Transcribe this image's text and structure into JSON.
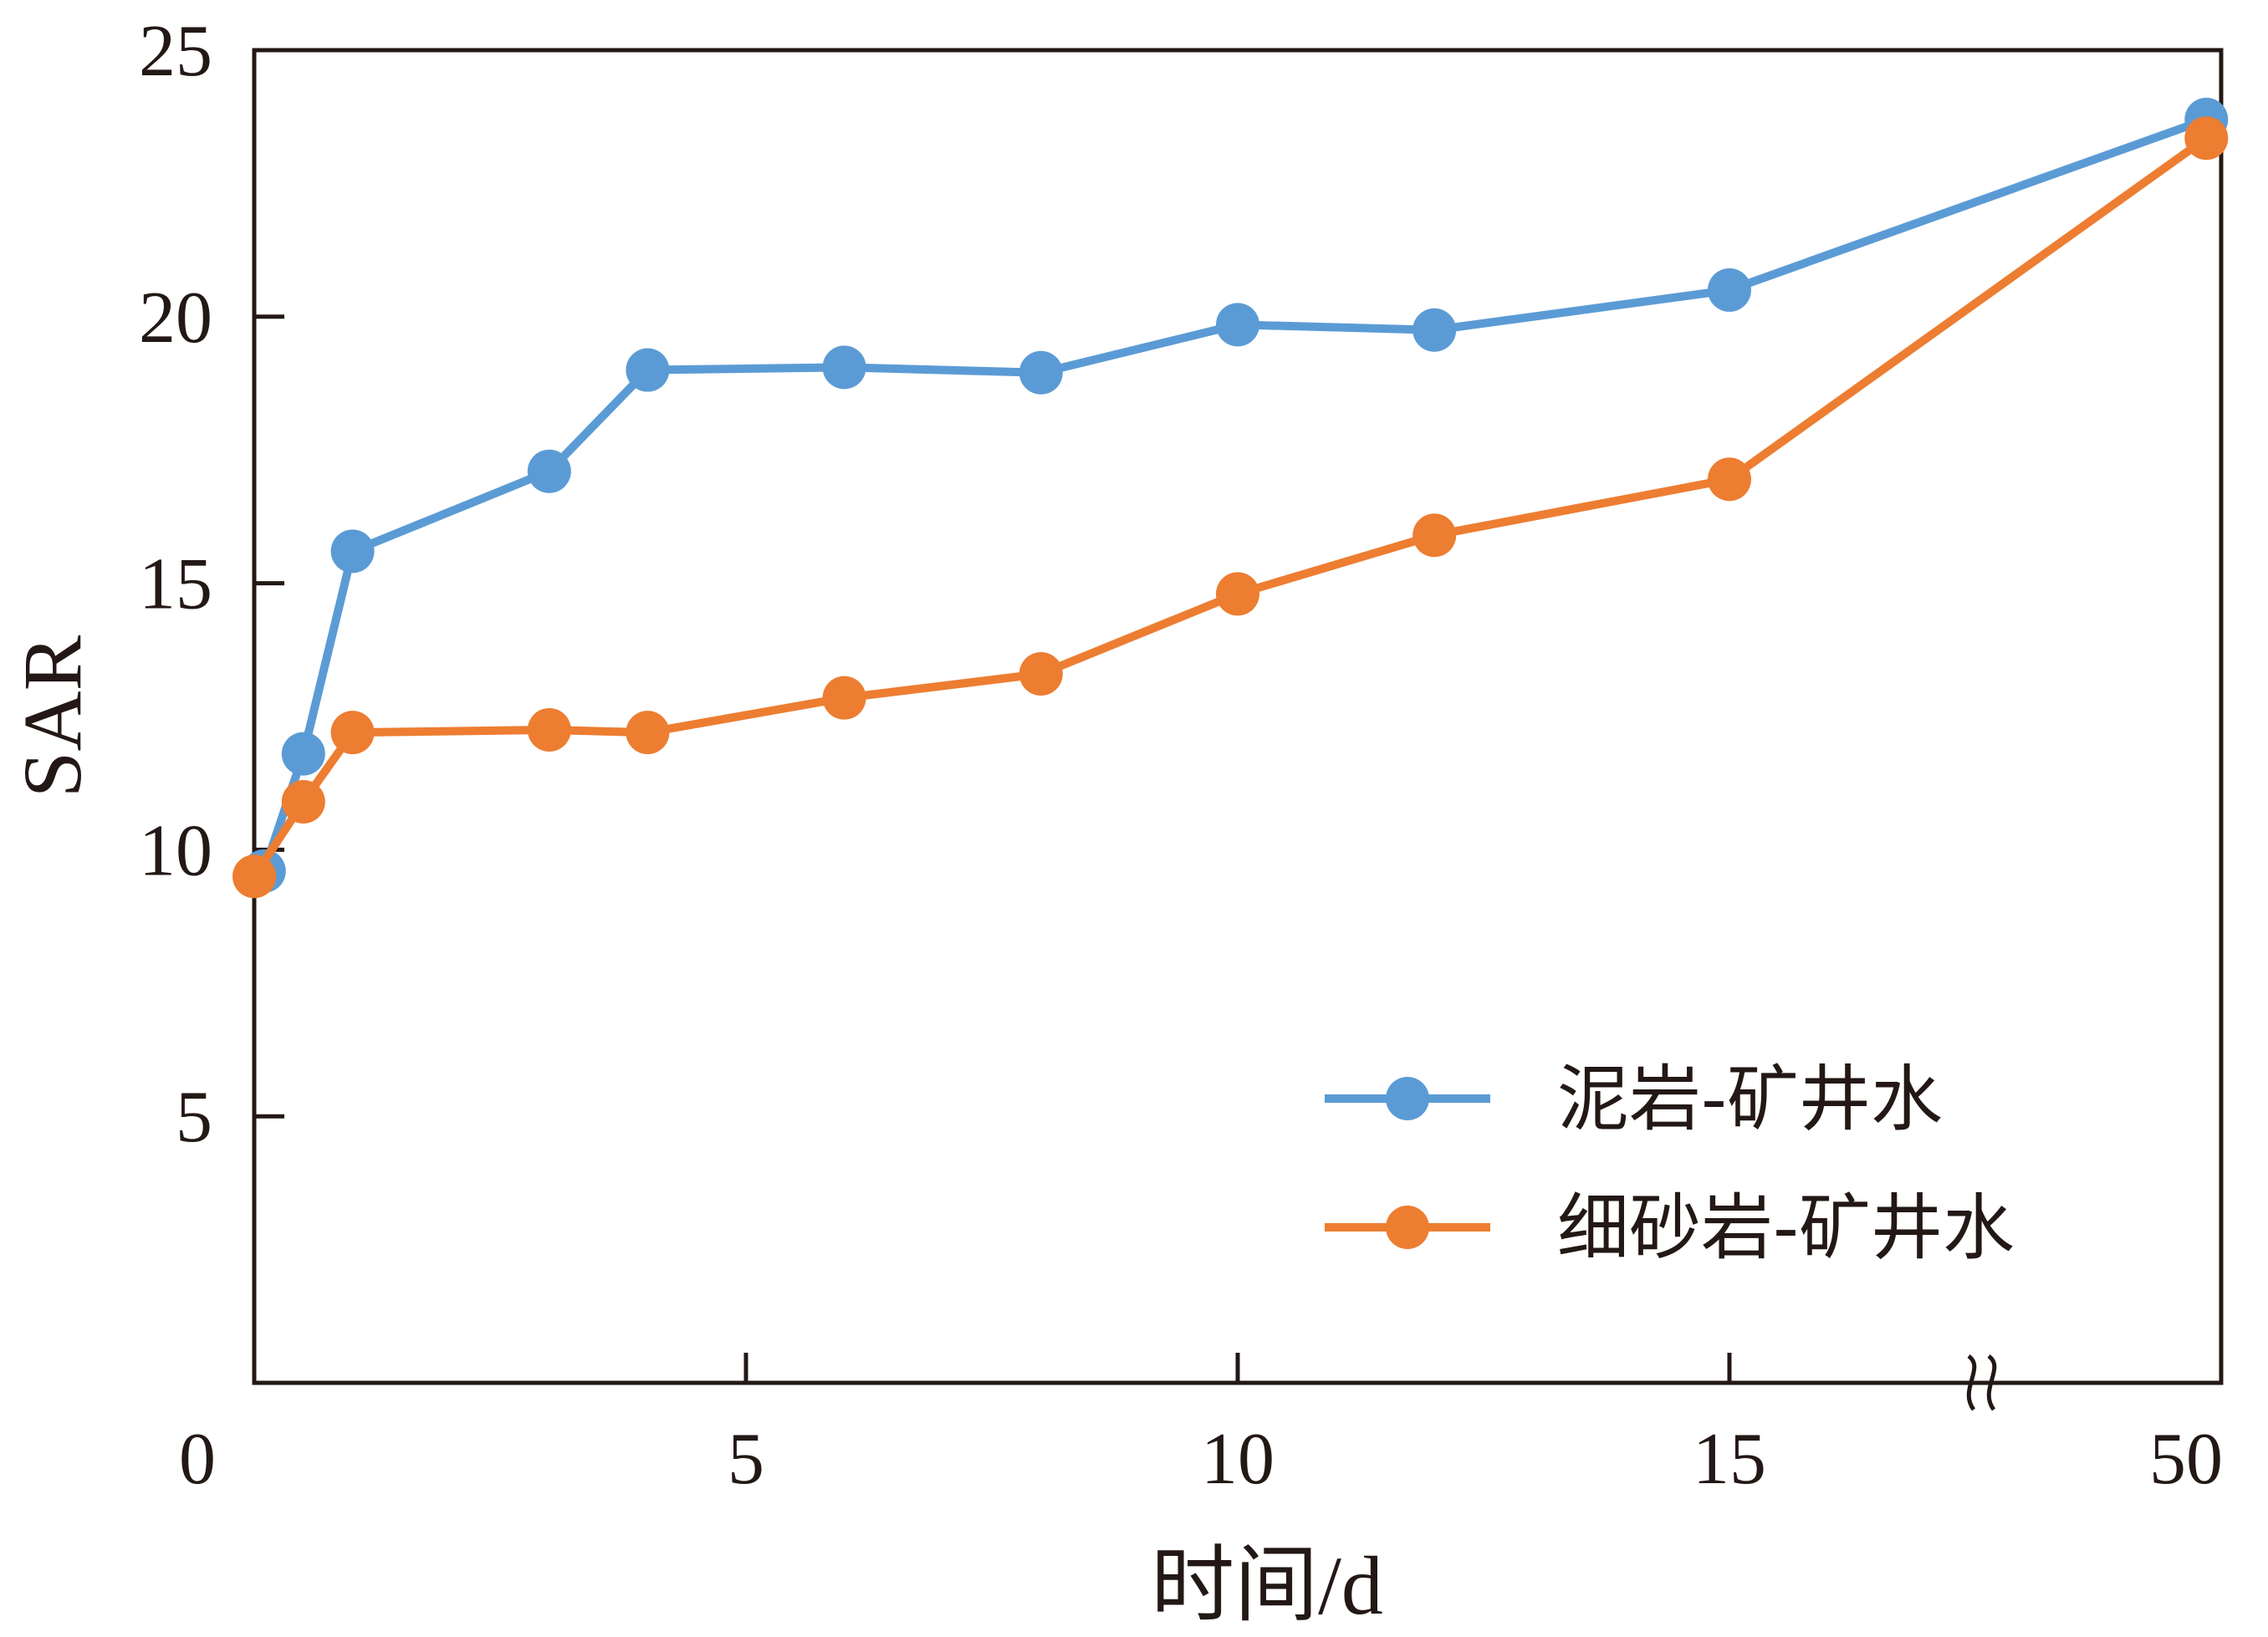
{
  "chart_data": {
    "type": "line",
    "xlabel": "时间/d",
    "ylabel": "SAR",
    "ylim": [
      0,
      25
    ],
    "yticks": [
      5,
      10,
      15,
      20,
      25
    ],
    "x_axis": {
      "segments": [
        {
          "from": 0,
          "to": 17.5,
          "scale": "linear"
        },
        {
          "from": 17.5,
          "to": 50,
          "scale": "broken"
        }
      ],
      "tick_labels": [
        "0",
        "5",
        "10",
        "15",
        "50"
      ],
      "break_marker": "≈"
    },
    "series": [
      {
        "name": "泥岩-矿井水",
        "color": "#5b9bd5",
        "points": [
          {
            "x": 0.1,
            "y": 9.6
          },
          {
            "x": 0.5,
            "y": 11.8
          },
          {
            "x": 1.0,
            "y": 15.6
          },
          {
            "x": 3.0,
            "y": 17.1
          },
          {
            "x": 4.0,
            "y": 19.0
          },
          {
            "x": 6.0,
            "y": 19.05
          },
          {
            "x": 8.0,
            "y": 18.95
          },
          {
            "x": 10.0,
            "y": 19.85
          },
          {
            "x": 12.0,
            "y": 19.75
          },
          {
            "x": 15.0,
            "y": 20.5
          },
          {
            "x": 48,
            "y": 23.7
          }
        ]
      },
      {
        "name": "细砂岩-矿井水",
        "color": "#ed7d31",
        "points": [
          {
            "x": 0.0,
            "y": 9.5
          },
          {
            "x": 0.5,
            "y": 10.9
          },
          {
            "x": 1.0,
            "y": 12.2
          },
          {
            "x": 3.0,
            "y": 12.25
          },
          {
            "x": 4.0,
            "y": 12.2
          },
          {
            "x": 6.0,
            "y": 12.85
          },
          {
            "x": 8.0,
            "y": 13.3
          },
          {
            "x": 10.0,
            "y": 14.8
          },
          {
            "x": 12.0,
            "y": 15.9
          },
          {
            "x": 15.0,
            "y": 16.95
          },
          {
            "x": 48,
            "y": 23.35
          }
        ]
      }
    ],
    "legend_position": "bottom-right",
    "grid": false
  }
}
